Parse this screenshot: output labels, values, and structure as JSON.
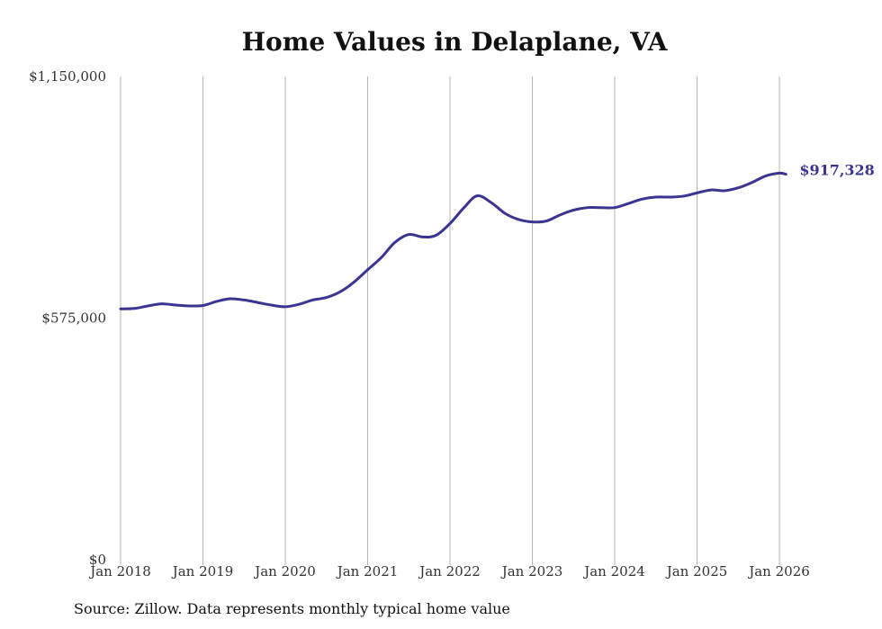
{
  "source_note": "Source: Zillow. Data represents monthly typical home value",
  "colors": {
    "line": "#3b3591",
    "grid": "#b5b5b5",
    "text": "#333333",
    "title": "#111111"
  },
  "chart_data": {
    "type": "line",
    "title": "Home Values in Delaplane, VA",
    "xlabel": "",
    "ylabel": "",
    "ylim": [
      0,
      1150000
    ],
    "xlim": [
      2018.0,
      2026.0833
    ],
    "y_ticks": [
      {
        "value": 0,
        "label": "$0"
      },
      {
        "value": 575000,
        "label": "$575,000"
      },
      {
        "value": 1150000,
        "label": "$1,150,000"
      }
    ],
    "x_ticks": [
      {
        "value": 2018,
        "label": "Jan 2018"
      },
      {
        "value": 2019,
        "label": "Jan 2019"
      },
      {
        "value": 2020,
        "label": "Jan 2020"
      },
      {
        "value": 2021,
        "label": "Jan 2021"
      },
      {
        "value": 2022,
        "label": "Jan 2022"
      },
      {
        "value": 2023,
        "label": "Jan 2023"
      },
      {
        "value": 2024,
        "label": "Jan 2024"
      },
      {
        "value": 2025,
        "label": "Jan 2025"
      },
      {
        "value": 2026,
        "label": "Jan 2026"
      }
    ],
    "grid": "vertical",
    "end_label": "$917,328",
    "series": [
      {
        "name": "Typical home value",
        "x": [
          2018.0,
          2018.17,
          2018.33,
          2018.5,
          2018.67,
          2018.83,
          2019.0,
          2019.17,
          2019.33,
          2019.5,
          2019.67,
          2019.83,
          2020.0,
          2020.17,
          2020.33,
          2020.5,
          2020.67,
          2020.83,
          2021.0,
          2021.17,
          2021.33,
          2021.5,
          2021.67,
          2021.83,
          2022.0,
          2022.17,
          2022.33,
          2022.5,
          2022.67,
          2022.83,
          2023.0,
          2023.17,
          2023.33,
          2023.5,
          2023.67,
          2023.83,
          2024.0,
          2024.17,
          2024.33,
          2024.5,
          2024.67,
          2024.83,
          2025.0,
          2025.17,
          2025.33,
          2025.5,
          2025.67,
          2025.83,
          2026.0,
          2026.08
        ],
        "values": [
          597000,
          598000,
          604000,
          609000,
          606000,
          604000,
          605000,
          615000,
          621000,
          618000,
          612000,
          606000,
          602000,
          608000,
          618000,
          624000,
          638000,
          660000,
          690000,
          720000,
          755000,
          774000,
          768000,
          772000,
          800000,
          838000,
          866000,
          850000,
          824000,
          810000,
          804000,
          806000,
          820000,
          832000,
          838000,
          838000,
          838000,
          848000,
          858000,
          863000,
          863000,
          865000,
          873000,
          880000,
          878000,
          885000,
          898000,
          913000,
          920000,
          917328
        ]
      }
    ]
  }
}
